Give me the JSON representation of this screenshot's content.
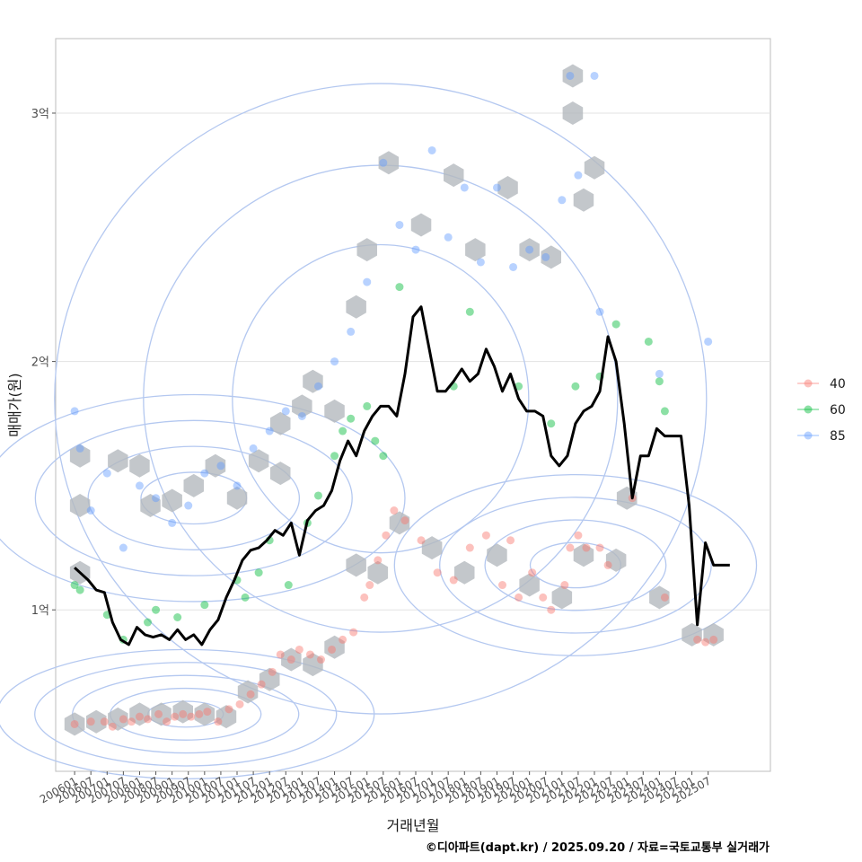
{
  "chart_data": {
    "type": "scatter",
    "title": "",
    "xlabel": "거래년월",
    "ylabel": "매매가(원)",
    "caption": "©디아파트(dapt.kr) / 2025.09.20 / 자료=국토교통부 실거래가",
    "y_unit": "억",
    "ylim": [
      0.35,
      3.3
    ],
    "xlim": [
      "2005-06",
      "2027-06"
    ],
    "y_ticks": [
      {
        "value": 1,
        "label": "1억"
      },
      {
        "value": 2,
        "label": "2억"
      },
      {
        "value": 3,
        "label": "3억"
      }
    ],
    "x_ticks": [
      "200601",
      "200607",
      "200701",
      "200707",
      "200801",
      "200807",
      "200901",
      "200907",
      "201001",
      "201007",
      "201101",
      "201107",
      "201201",
      "201207",
      "201301",
      "201307",
      "201401",
      "201407",
      "201501",
      "201507",
      "201601",
      "201607",
      "201701",
      "201707",
      "201801",
      "201807",
      "201901",
      "201907",
      "202001",
      "202007",
      "202101",
      "202107",
      "202201",
      "202207",
      "202301",
      "202307",
      "202401",
      "202407",
      "202501",
      "202507"
    ],
    "legend": {
      "position": "right",
      "entries": [
        {
          "label": "40",
          "color": "#f8766d"
        },
        {
          "label": "60",
          "color": "#00ba38"
        },
        {
          "label": "85",
          "color": "#619cff"
        }
      ]
    },
    "colors": {
      "40": "#f8766d",
      "60": "#00ba38",
      "85": "#619cff",
      "trend": "#000000",
      "contour": "#b4c8f0",
      "hexbin": "#b4b9be"
    },
    "series": [
      {
        "name": "40",
        "points": [
          [
            "2006-01",
            0.54
          ],
          [
            "2006-07",
            0.55
          ],
          [
            "2006-12",
            0.55
          ],
          [
            "2007-03",
            0.53
          ],
          [
            "2007-07",
            0.56
          ],
          [
            "2007-10",
            0.55
          ],
          [
            "2008-01",
            0.57
          ],
          [
            "2008-04",
            0.56
          ],
          [
            "2008-08",
            0.58
          ],
          [
            "2008-11",
            0.55
          ],
          [
            "2009-02",
            0.57
          ],
          [
            "2009-05",
            0.58
          ],
          [
            "2009-08",
            0.57
          ],
          [
            "2009-11",
            0.58
          ],
          [
            "2010-02",
            0.59
          ],
          [
            "2010-06",
            0.55
          ],
          [
            "2010-10",
            0.6
          ],
          [
            "2011-02",
            0.62
          ],
          [
            "2011-06",
            0.66
          ],
          [
            "2011-10",
            0.7
          ],
          [
            "2012-02",
            0.75
          ],
          [
            "2012-05",
            0.82
          ],
          [
            "2012-09",
            0.8
          ],
          [
            "2012-12",
            0.84
          ],
          [
            "2013-04",
            0.82
          ],
          [
            "2013-08",
            0.8
          ],
          [
            "2013-12",
            0.84
          ],
          [
            "2014-04",
            0.88
          ],
          [
            "2014-08",
            0.91
          ],
          [
            "2014-12",
            1.05
          ],
          [
            "2015-02",
            1.1
          ],
          [
            "2015-05",
            1.2
          ],
          [
            "2015-08",
            1.3
          ],
          [
            "2015-11",
            1.4
          ],
          [
            "2016-03",
            1.36
          ],
          [
            "2016-09",
            1.28
          ],
          [
            "2017-03",
            1.15
          ],
          [
            "2017-09",
            1.12
          ],
          [
            "2018-03",
            1.25
          ],
          [
            "2018-09",
            1.3
          ],
          [
            "2019-03",
            1.1
          ],
          [
            "2019-06",
            1.28
          ],
          [
            "2019-09",
            1.05
          ],
          [
            "2020-02",
            1.15
          ],
          [
            "2020-06",
            1.05
          ],
          [
            "2020-09",
            1.0
          ],
          [
            "2021-02",
            1.1
          ],
          [
            "2021-04",
            1.25
          ],
          [
            "2021-07",
            1.3
          ],
          [
            "2021-10",
            1.25
          ],
          [
            "2022-03",
            1.25
          ],
          [
            "2022-06",
            1.18
          ],
          [
            "2023-03",
            1.45
          ],
          [
            "2024-03",
            1.05
          ],
          [
            "2025-03",
            0.88
          ],
          [
            "2025-06",
            0.87
          ],
          [
            "2025-09",
            0.88
          ]
        ]
      },
      {
        "name": "60",
        "points": [
          [
            "2006-01",
            1.1
          ],
          [
            "2006-03",
            1.08
          ],
          [
            "2007-01",
            0.98
          ],
          [
            "2007-07",
            0.88
          ],
          [
            "2008-04",
            0.95
          ],
          [
            "2008-07",
            1.0
          ],
          [
            "2009-03",
            0.97
          ],
          [
            "2010-01",
            1.02
          ],
          [
            "2011-01",
            1.12
          ],
          [
            "2011-04",
            1.05
          ],
          [
            "2011-09",
            1.15
          ],
          [
            "2012-01",
            1.28
          ],
          [
            "2012-08",
            1.1
          ],
          [
            "2013-03",
            1.35
          ],
          [
            "2013-07",
            1.46
          ],
          [
            "2014-01",
            1.62
          ],
          [
            "2014-04",
            1.72
          ],
          [
            "2014-07",
            1.77
          ],
          [
            "2015-01",
            1.82
          ],
          [
            "2015-04",
            1.68
          ],
          [
            "2015-07",
            1.62
          ],
          [
            "2016-01",
            2.3
          ],
          [
            "2017-09",
            1.9
          ],
          [
            "2018-03",
            2.2
          ],
          [
            "2019-09",
            1.9
          ],
          [
            "2020-09",
            1.75
          ],
          [
            "2021-06",
            1.9
          ],
          [
            "2022-03",
            1.94
          ],
          [
            "2022-09",
            2.15
          ],
          [
            "2023-09",
            2.08
          ],
          [
            "2024-01",
            1.92
          ],
          [
            "2024-03",
            1.8
          ]
        ]
      },
      {
        "name": "85",
        "points": [
          [
            "2006-01",
            1.8
          ],
          [
            "2006-03",
            1.65
          ],
          [
            "2006-07",
            1.4
          ],
          [
            "2007-01",
            1.55
          ],
          [
            "2007-07",
            1.25
          ],
          [
            "2008-01",
            1.5
          ],
          [
            "2008-07",
            1.45
          ],
          [
            "2009-01",
            1.35
          ],
          [
            "2009-07",
            1.42
          ],
          [
            "2010-01",
            1.55
          ],
          [
            "2010-07",
            1.58
          ],
          [
            "2011-01",
            1.5
          ],
          [
            "2011-07",
            1.65
          ],
          [
            "2012-01",
            1.72
          ],
          [
            "2012-07",
            1.8
          ],
          [
            "2013-01",
            1.78
          ],
          [
            "2013-07",
            1.9
          ],
          [
            "2014-01",
            2.0
          ],
          [
            "2014-07",
            2.12
          ],
          [
            "2015-01",
            2.32
          ],
          [
            "2015-07",
            2.8
          ],
          [
            "2016-01",
            2.55
          ],
          [
            "2016-07",
            2.45
          ],
          [
            "2017-01",
            2.85
          ],
          [
            "2017-07",
            2.5
          ],
          [
            "2018-01",
            2.7
          ],
          [
            "2018-07",
            2.4
          ],
          [
            "2019-01",
            2.7
          ],
          [
            "2019-07",
            2.38
          ],
          [
            "2020-01",
            2.45
          ],
          [
            "2020-07",
            2.42
          ],
          [
            "2021-01",
            2.65
          ],
          [
            "2021-04",
            3.15
          ],
          [
            "2021-07",
            2.75
          ],
          [
            "2022-01",
            3.15
          ],
          [
            "2022-03",
            2.2
          ],
          [
            "2024-01",
            1.95
          ],
          [
            "2025-07",
            2.08
          ]
        ]
      }
    ],
    "trend": {
      "name": "monthly median",
      "points": [
        [
          "2006-01",
          1.17
        ],
        [
          "2006-03",
          1.15
        ],
        [
          "2006-06",
          1.12
        ],
        [
          "2006-09",
          1.08
        ],
        [
          "2006-12",
          1.07
        ],
        [
          "2007-03",
          0.95
        ],
        [
          "2007-06",
          0.88
        ],
        [
          "2007-09",
          0.86
        ],
        [
          "2007-12",
          0.93
        ],
        [
          "2008-03",
          0.9
        ],
        [
          "2008-06",
          0.89
        ],
        [
          "2008-09",
          0.9
        ],
        [
          "2008-12",
          0.88
        ],
        [
          "2009-03",
          0.92
        ],
        [
          "2009-06",
          0.88
        ],
        [
          "2009-09",
          0.9
        ],
        [
          "2009-12",
          0.86
        ],
        [
          "2010-03",
          0.92
        ],
        [
          "2010-06",
          0.96
        ],
        [
          "2010-09",
          1.05
        ],
        [
          "2010-12",
          1.12
        ],
        [
          "2011-03",
          1.2
        ],
        [
          "2011-06",
          1.24
        ],
        [
          "2011-09",
          1.25
        ],
        [
          "2011-12",
          1.28
        ],
        [
          "2012-03",
          1.32
        ],
        [
          "2012-06",
          1.3
        ],
        [
          "2012-09",
          1.35
        ],
        [
          "2012-12",
          1.22
        ],
        [
          "2013-03",
          1.36
        ],
        [
          "2013-06",
          1.4
        ],
        [
          "2013-09",
          1.42
        ],
        [
          "2013-12",
          1.48
        ],
        [
          "2014-03",
          1.6
        ],
        [
          "2014-06",
          1.68
        ],
        [
          "2014-09",
          1.62
        ],
        [
          "2014-12",
          1.72
        ],
        [
          "2015-03",
          1.78
        ],
        [
          "2015-06",
          1.82
        ],
        [
          "2015-09",
          1.82
        ],
        [
          "2015-12",
          1.78
        ],
        [
          "2016-03",
          1.95
        ],
        [
          "2016-06",
          2.18
        ],
        [
          "2016-09",
          2.22
        ],
        [
          "2016-12",
          2.05
        ],
        [
          "2017-03",
          1.88
        ],
        [
          "2017-06",
          1.88
        ],
        [
          "2017-09",
          1.92
        ],
        [
          "2017-12",
          1.97
        ],
        [
          "2018-03",
          1.92
        ],
        [
          "2018-06",
          1.95
        ],
        [
          "2018-09",
          2.05
        ],
        [
          "2018-12",
          1.98
        ],
        [
          "2019-03",
          1.88
        ],
        [
          "2019-06",
          1.95
        ],
        [
          "2019-09",
          1.85
        ],
        [
          "2019-12",
          1.8
        ],
        [
          "2020-03",
          1.8
        ],
        [
          "2020-06",
          1.78
        ],
        [
          "2020-09",
          1.62
        ],
        [
          "2020-12",
          1.58
        ],
        [
          "2021-03",
          1.62
        ],
        [
          "2021-06",
          1.75
        ],
        [
          "2021-09",
          1.8
        ],
        [
          "2021-12",
          1.82
        ],
        [
          "2022-03",
          1.88
        ],
        [
          "2022-06",
          2.1
        ],
        [
          "2022-09",
          2.0
        ],
        [
          "2022-12",
          1.75
        ],
        [
          "2023-03",
          1.45
        ],
        [
          "2023-06",
          1.62
        ],
        [
          "2023-09",
          1.62
        ],
        [
          "2023-12",
          1.73
        ],
        [
          "2024-03",
          1.7
        ],
        [
          "2024-06",
          1.7
        ],
        [
          "2024-09",
          1.7
        ],
        [
          "2024-12",
          1.42
        ],
        [
          "2025-03",
          0.94
        ],
        [
          "2025-06",
          1.27
        ],
        [
          "2025-09",
          1.18
        ],
        [
          "2026-03",
          1.18
        ]
      ]
    },
    "hexbins": [
      [
        "2006-01",
        0.54
      ],
      [
        "2006-09",
        0.55
      ],
      [
        "2007-05",
        0.56
      ],
      [
        "2008-01",
        0.58
      ],
      [
        "2008-09",
        0.58
      ],
      [
        "2009-05",
        0.59
      ],
      [
        "2010-01",
        0.58
      ],
      [
        "2010-09",
        0.57
      ],
      [
        "2011-05",
        0.67
      ],
      [
        "2012-01",
        0.72
      ],
      [
        "2012-09",
        0.8
      ],
      [
        "2013-05",
        0.78
      ],
      [
        "2014-01",
        0.85
      ],
      [
        "2006-03",
        1.15
      ],
      [
        "2006-03",
        1.42
      ],
      [
        "2006-03",
        1.62
      ],
      [
        "2007-05",
        1.6
      ],
      [
        "2008-01",
        1.58
      ],
      [
        "2008-05",
        1.42
      ],
      [
        "2009-01",
        1.44
      ],
      [
        "2009-09",
        1.5
      ],
      [
        "2010-05",
        1.58
      ],
      [
        "2011-01",
        1.45
      ],
      [
        "2011-09",
        1.6
      ],
      [
        "2012-05",
        1.55
      ],
      [
        "2012-05",
        1.75
      ],
      [
        "2013-01",
        1.82
      ],
      [
        "2013-05",
        1.92
      ],
      [
        "2014-01",
        1.8
      ],
      [
        "2014-09",
        2.22
      ],
      [
        "2015-01",
        2.45
      ],
      [
        "2015-09",
        2.8
      ],
      [
        "2016-09",
        2.55
      ],
      [
        "2017-09",
        2.75
      ],
      [
        "2018-05",
        2.45
      ],
      [
        "2019-05",
        2.7
      ],
      [
        "2020-01",
        2.45
      ],
      [
        "2020-09",
        2.42
      ],
      [
        "2021-09",
        2.65
      ],
      [
        "2021-05",
        3.15
      ],
      [
        "2022-01",
        2.78
      ],
      [
        "2021-05",
        3.0
      ],
      [
        "2014-09",
        1.18
      ],
      [
        "2015-05",
        1.15
      ],
      [
        "2016-01",
        1.35
      ],
      [
        "2017-01",
        1.25
      ],
      [
        "2018-01",
        1.15
      ],
      [
        "2019-01",
        1.22
      ],
      [
        "2020-01",
        1.1
      ],
      [
        "2021-01",
        1.05
      ],
      [
        "2021-09",
        1.22
      ],
      [
        "2022-09",
        1.2
      ],
      [
        "2023-01",
        1.45
      ],
      [
        "2024-01",
        1.05
      ],
      [
        "2025-01",
        0.9
      ],
      [
        "2025-09",
        0.9
      ]
    ],
    "contour_levels": 10
  }
}
